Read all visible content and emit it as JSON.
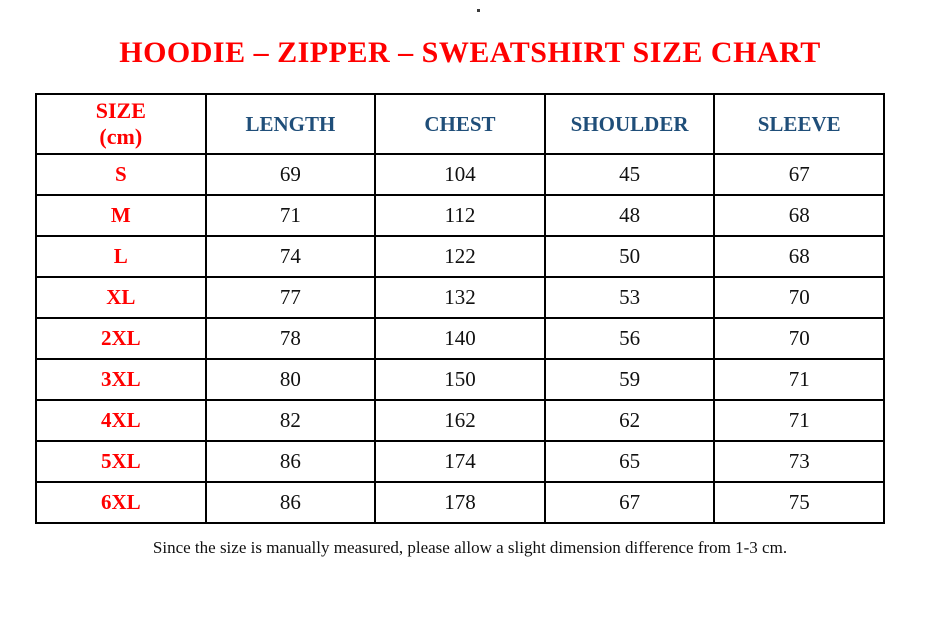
{
  "chart_data": {
    "type": "table",
    "title": "HOODIE – ZIPPER – SWEATSHIRT SIZE CHART",
    "columns": [
      "SIZE\n(cm)",
      "LENGTH",
      "CHEST",
      "SHOULDER",
      "SLEEVE"
    ],
    "rows": [
      [
        "S",
        "69",
        "104",
        "45",
        "67"
      ],
      [
        "M",
        "71",
        "112",
        "48",
        "68"
      ],
      [
        "L",
        "74",
        "122",
        "50",
        "68"
      ],
      [
        "XL",
        "77",
        "132",
        "53",
        "70"
      ],
      [
        "2XL",
        "78",
        "140",
        "56",
        "70"
      ],
      [
        "3XL",
        "80",
        "150",
        "59",
        "71"
      ],
      [
        "4XL",
        "82",
        "162",
        "62",
        "71"
      ],
      [
        "5XL",
        "86",
        "174",
        "65",
        "73"
      ],
      [
        "6XL",
        "86",
        "178",
        "67",
        "75"
      ]
    ],
    "footnote": "Since the size is manually measured, please allow a slight dimension difference from 1-3 cm.",
    "layout_hints": {
      "grid": true,
      "header_position": "top",
      "size_column_position": "left"
    }
  },
  "colors": {
    "title_red": "#FF0000",
    "header_blue": "#1F4E79",
    "text": "#111111",
    "border": "#000000"
  },
  "decor": {
    "stray_dot": "."
  }
}
